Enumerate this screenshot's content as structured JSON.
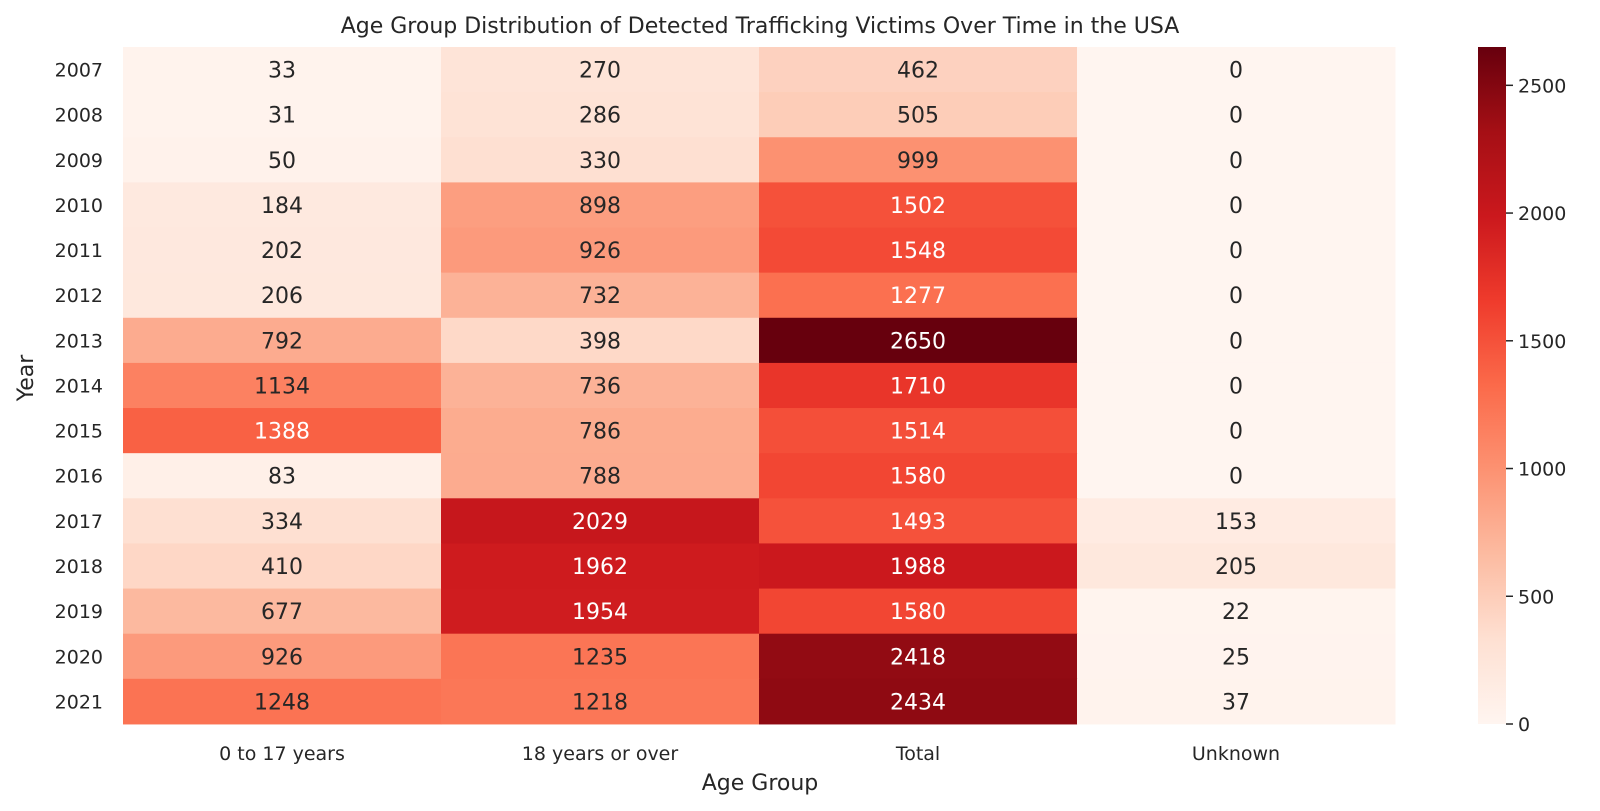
{
  "chart_data": {
    "type": "heatmap",
    "title": "Age Group Distribution of Detected Trafficking Victims Over Time in the USA",
    "xlabel": "Age Group",
    "ylabel": "Year",
    "columns": [
      "0 to 17 years",
      "18 years or over",
      "Total",
      "Unknown"
    ],
    "rows": [
      "2007",
      "2008",
      "2009",
      "2010",
      "2011",
      "2012",
      "2013",
      "2014",
      "2015",
      "2016",
      "2017",
      "2018",
      "2019",
      "2020",
      "2021"
    ],
    "values": [
      [
        33,
        270,
        462,
        0
      ],
      [
        31,
        286,
        505,
        0
      ],
      [
        50,
        330,
        999,
        0
      ],
      [
        184,
        898,
        1502,
        0
      ],
      [
        202,
        926,
        1548,
        0
      ],
      [
        206,
        732,
        1277,
        0
      ],
      [
        792,
        398,
        2650,
        0
      ],
      [
        1134,
        736,
        1710,
        0
      ],
      [
        1388,
        786,
        1514,
        0
      ],
      [
        83,
        788,
        1580,
        0
      ],
      [
        334,
        2029,
        1493,
        153
      ],
      [
        410,
        1962,
        1988,
        205
      ],
      [
        677,
        1954,
        1580,
        22
      ],
      [
        926,
        1235,
        2418,
        25
      ],
      [
        1248,
        1218,
        2434,
        37
      ]
    ],
    "colormap": "Reds",
    "vmin": 0,
    "vmax": 2650,
    "colorbar_ticks": [
      0,
      500,
      1000,
      1500,
      2000,
      2500
    ]
  }
}
